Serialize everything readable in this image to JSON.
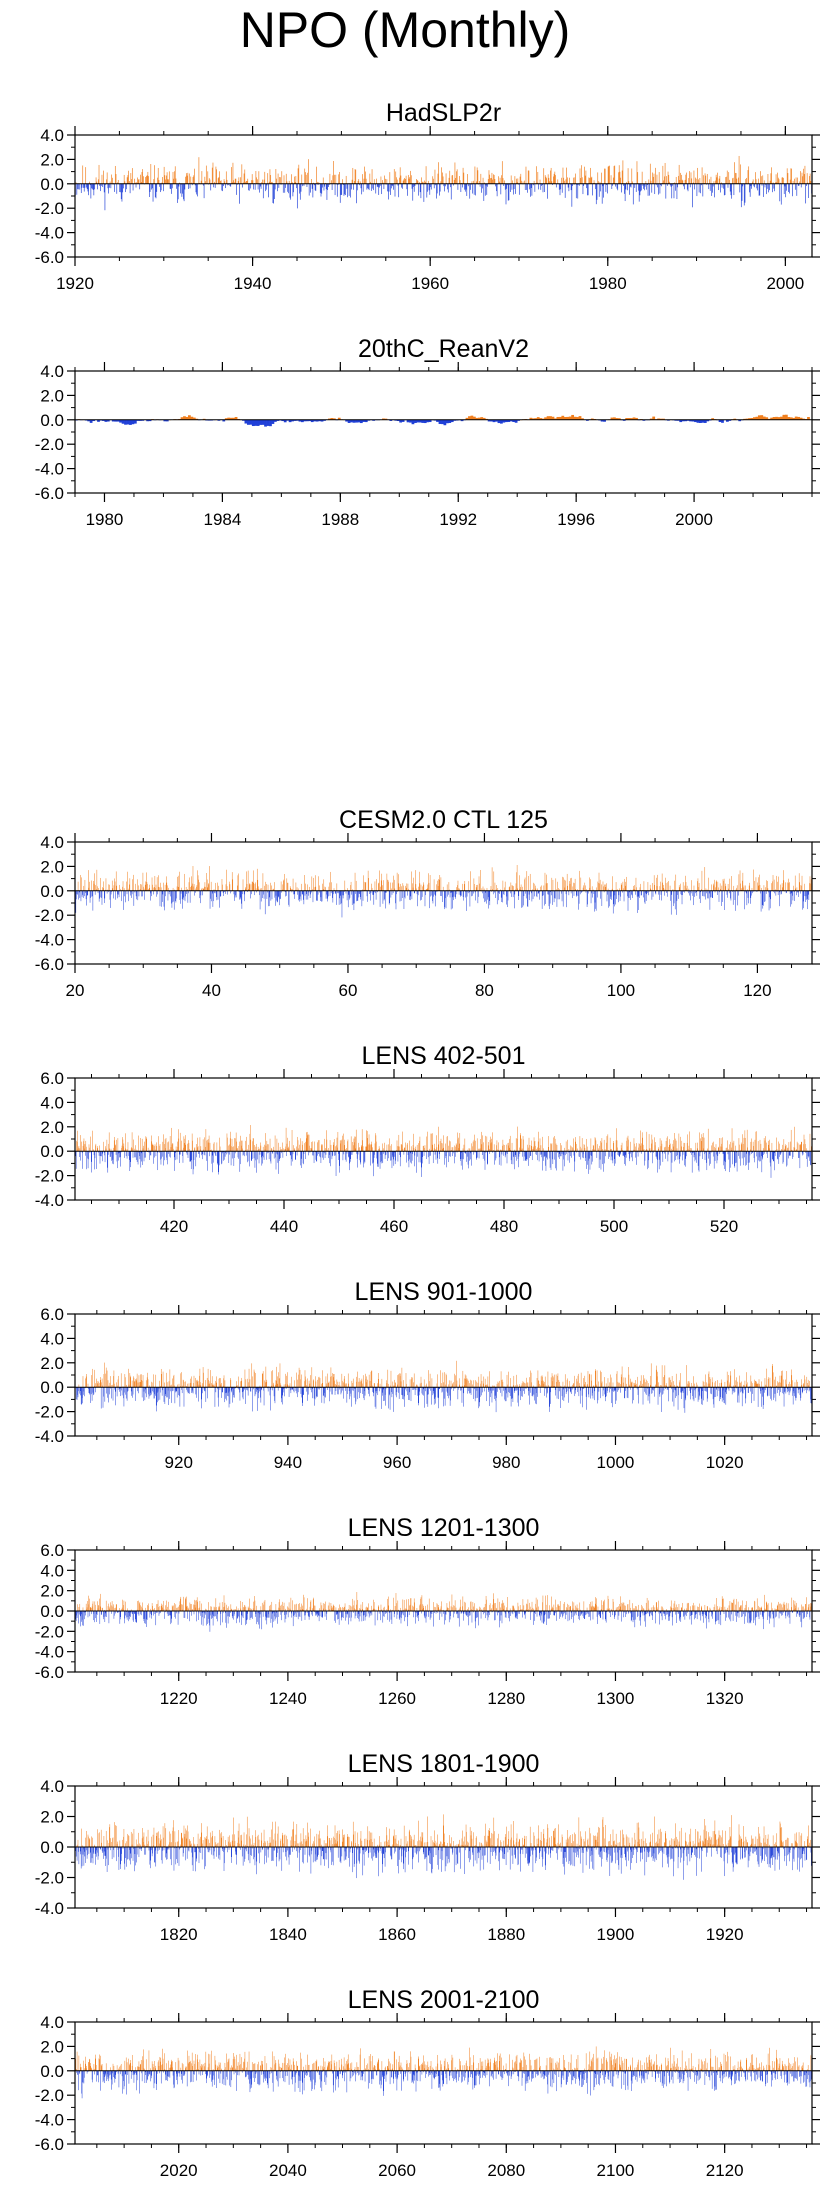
{
  "figure": {
    "title": "NPO (Monthly)",
    "colors": {
      "positive": "#f07f1e",
      "negative": "#2040d8",
      "axis": "#000000"
    }
  },
  "chart_data": [
    {
      "type": "bar",
      "title": "HadSLP2r",
      "xlim": [
        1920,
        2003
      ],
      "ylim": [
        -6,
        4
      ],
      "xticks": [
        1920,
        1940,
        1960,
        1980,
        2000
      ],
      "yticks": [
        4,
        2,
        0,
        -2,
        -4,
        -6
      ],
      "ytick_labels": [
        "4.0",
        "2.0",
        "0.0",
        "-2.0",
        "-4.0",
        "-6.0"
      ],
      "seed": 11,
      "amp": 0.85,
      "smooth": 0.1
    },
    {
      "type": "bar",
      "title": "20thC_ReanV2",
      "xlim": [
        1979,
        2004
      ],
      "ylim": [
        -6,
        4
      ],
      "xticks": [
        1980,
        1984,
        1988,
        1992,
        1996,
        2000
      ],
      "yticks": [
        4,
        2,
        0,
        -2,
        -4,
        -6
      ],
      "ytick_labels": [
        "4.0",
        "2.0",
        "0.0",
        "-2.0",
        "-4.0",
        "-6.0"
      ],
      "seed": 23,
      "amp": 0.9,
      "smooth": 0.9
    },
    {
      "type": "bar",
      "title": "CESM2.0 CTL 125",
      "xlim": [
        20,
        128
      ],
      "ylim": [
        -6,
        4
      ],
      "xticks": [
        20,
        40,
        60,
        80,
        100,
        120
      ],
      "yticks": [
        4,
        2,
        0,
        -2,
        -4,
        -6
      ],
      "ytick_labels": [
        "4.0",
        "2.0",
        "0.0",
        "-2.0",
        "-4.0",
        "-6.0"
      ],
      "seed": 37,
      "amp": 0.85,
      "smooth": 0.1
    },
    {
      "type": "bar",
      "title": "LENS 402-501",
      "xlim": [
        402,
        536
      ],
      "ylim": [
        -4,
        6
      ],
      "xticks": [
        420,
        440,
        460,
        480,
        500,
        520
      ],
      "yticks": [
        6,
        4,
        2,
        0,
        -2,
        -4
      ],
      "ytick_labels": [
        "6.0",
        "4.0",
        "2.0",
        "0.0",
        "-2.0",
        "-4.0"
      ],
      "seed": 41,
      "amp": 0.85,
      "smooth": 0.1
    },
    {
      "type": "bar",
      "title": "LENS 901-1000",
      "xlim": [
        901,
        1036
      ],
      "ylim": [
        -4,
        6
      ],
      "xticks": [
        920,
        940,
        960,
        980,
        1000,
        1020
      ],
      "yticks": [
        6,
        4,
        2,
        0,
        -2,
        -4
      ],
      "ytick_labels": [
        "6.0",
        "4.0",
        "2.0",
        "0.0",
        "-2.0",
        "-4.0"
      ],
      "seed": 53,
      "amp": 0.85,
      "smooth": 0.1
    },
    {
      "type": "bar",
      "title": "LENS 1201-1300",
      "xlim": [
        1201,
        1336
      ],
      "ylim": [
        -6,
        6
      ],
      "xticks": [
        1220,
        1240,
        1260,
        1280,
        1300,
        1320
      ],
      "yticks": [
        6,
        4,
        2,
        0,
        -2,
        -4,
        -6
      ],
      "ytick_labels": [
        "6.0",
        "4.0",
        "2.0",
        "0.0",
        "-2.0",
        "-4.0",
        "-6.0"
      ],
      "seed": 67,
      "amp": 0.75,
      "smooth": 0.1
    },
    {
      "type": "bar",
      "title": "LENS 1801-1900",
      "xlim": [
        1801,
        1936
      ],
      "ylim": [
        -4,
        4
      ],
      "xticks": [
        1820,
        1840,
        1860,
        1880,
        1900,
        1920
      ],
      "yticks": [
        4,
        2,
        0,
        -2,
        -4
      ],
      "ytick_labels": [
        "4.0",
        "2.0",
        "0.0",
        "-2.0",
        "-4.0"
      ],
      "seed": 79,
      "amp": 0.85,
      "smooth": 0.1
    },
    {
      "type": "bar",
      "title": "LENS 2001-2100",
      "xlim": [
        2001,
        2136
      ],
      "ylim": [
        -6,
        4
      ],
      "xticks": [
        2020,
        2040,
        2060,
        2080,
        2100,
        2120
      ],
      "yticks": [
        4,
        2,
        0,
        -2,
        -4,
        -6
      ],
      "ytick_labels": [
        "4.0",
        "2.0",
        "0.0",
        "-2.0",
        "-4.0",
        "-6.0"
      ],
      "seed": 83,
      "amp": 0.85,
      "smooth": 0.1
    }
  ]
}
